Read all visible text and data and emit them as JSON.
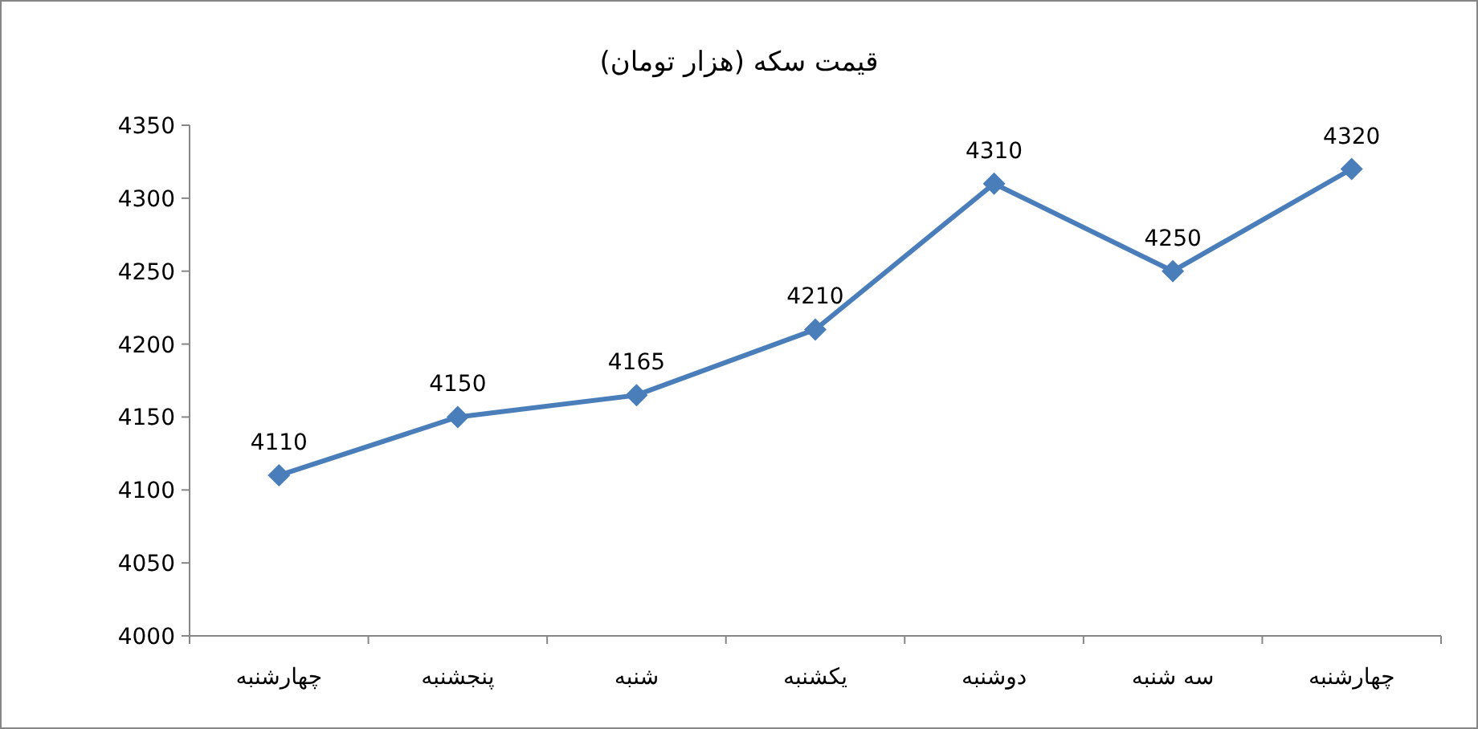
{
  "chart_data": {
    "type": "line",
    "title": "قیمت سکه (هزار تومان)",
    "categories": [
      "چهارشنبه",
      "پنجشنبه",
      "شنبه",
      "یکشنبه",
      "دوشنبه",
      "سه شنبه",
      "چهارشنبه"
    ],
    "series": [
      {
        "color": "#4a7ebb",
        "values": [
          4110,
          4150,
          4165,
          4210,
          4310,
          4250,
          4320
        ]
      }
    ],
    "ylim": [
      4000,
      4350
    ],
    "yticks": [
      4000,
      4050,
      4100,
      4150,
      4200,
      4250,
      4300,
      4350
    ],
    "marker": "diamond",
    "line_style": "solid",
    "data_labels": true,
    "grid": false
  }
}
